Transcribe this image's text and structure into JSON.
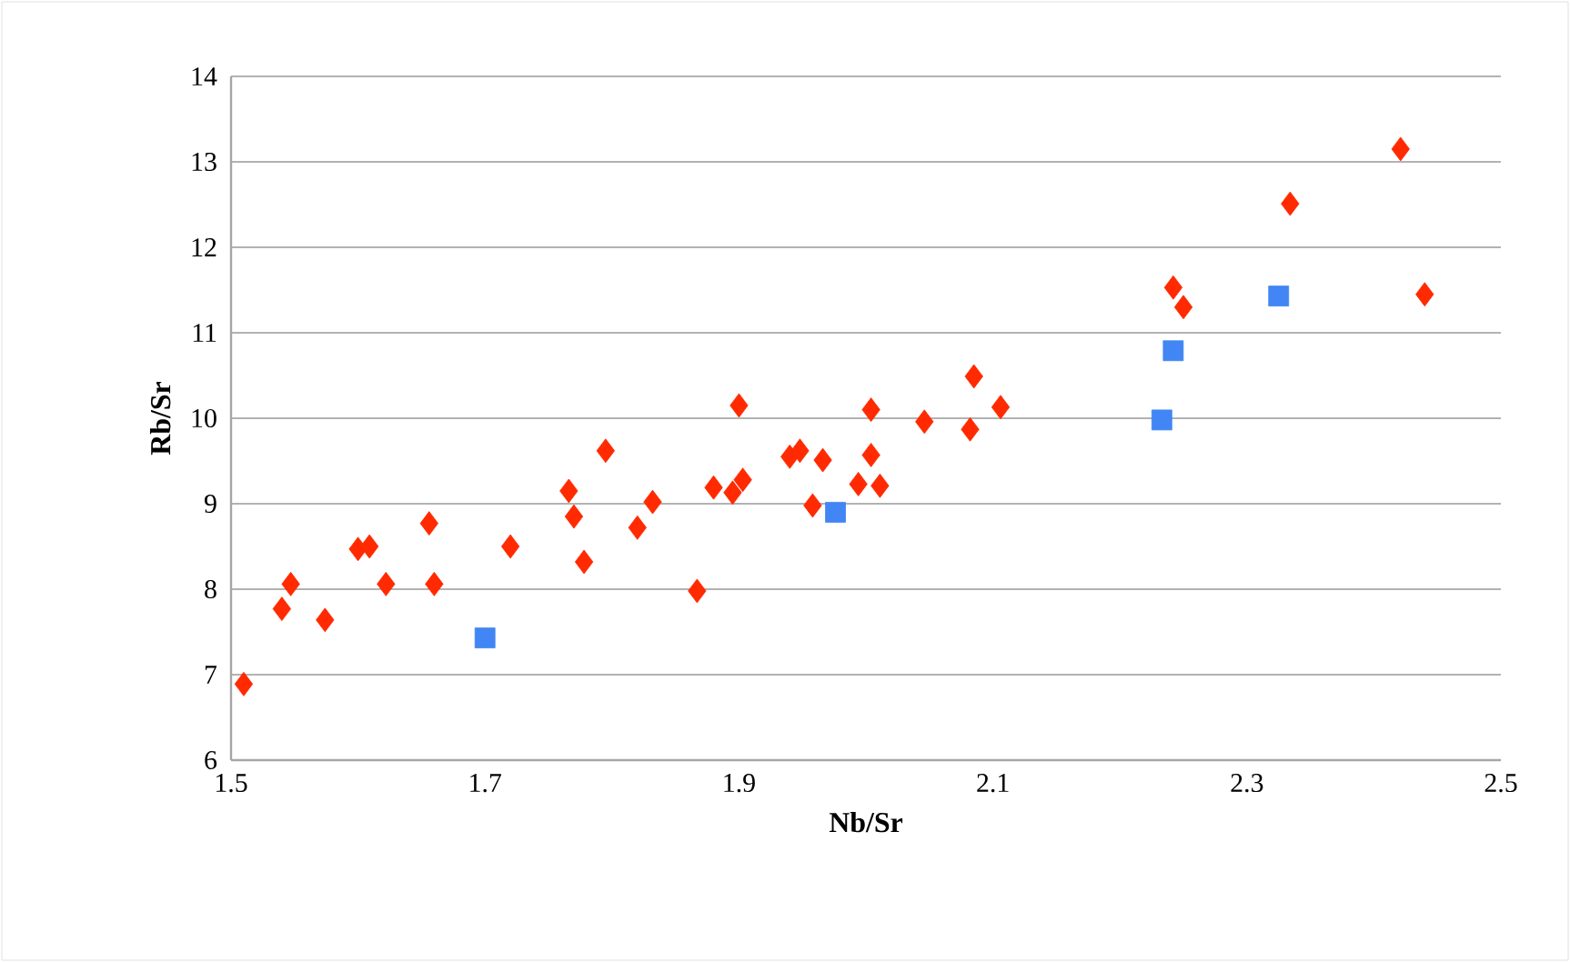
{
  "chart_data": {
    "type": "scatter",
    "xlabel": "Nb/Sr",
    "ylabel": "Rb/Sr",
    "xlim": [
      1.5,
      2.5
    ],
    "xticks": [
      1.5,
      1.7,
      1.9,
      2.1,
      2.3,
      2.5
    ],
    "ylim": [
      6,
      14
    ],
    "yticks": [
      6,
      7,
      8,
      9,
      10,
      11,
      12,
      13,
      14
    ],
    "grid": "y",
    "series": [
      {
        "color": "#ff2a00",
        "marker": "diamond",
        "x": [
          1.51,
          1.54,
          1.547,
          1.574,
          1.6,
          1.609,
          1.622,
          1.656,
          1.66,
          1.72,
          1.766,
          1.77,
          1.778,
          1.795,
          1.82,
          1.832,
          1.867,
          1.88,
          1.895,
          1.9,
          1.903,
          1.94,
          1.948,
          1.958,
          1.966,
          1.994,
          2.004,
          2.004,
          2.011,
          2.046,
          2.082,
          2.085,
          2.106,
          2.242,
          2.25,
          2.334,
          2.421,
          2.44
        ],
        "values": [
          6.89,
          7.77,
          8.06,
          7.64,
          8.47,
          8.5,
          8.06,
          8.77,
          8.06,
          8.5,
          9.15,
          8.85,
          8.32,
          9.62,
          8.72,
          9.02,
          7.98,
          9.19,
          9.13,
          10.15,
          9.28,
          9.55,
          9.62,
          8.98,
          9.51,
          9.23,
          9.57,
          10.1,
          9.21,
          9.96,
          9.87,
          10.49,
          10.13,
          11.53,
          11.3,
          12.51,
          13.15,
          11.45
        ]
      },
      {
        "color": "#4285f4",
        "marker": "square",
        "x": [
          1.7,
          1.976,
          2.233,
          2.242,
          2.325
        ],
        "values": [
          7.43,
          8.9,
          9.98,
          10.79,
          11.43
        ]
      }
    ]
  }
}
